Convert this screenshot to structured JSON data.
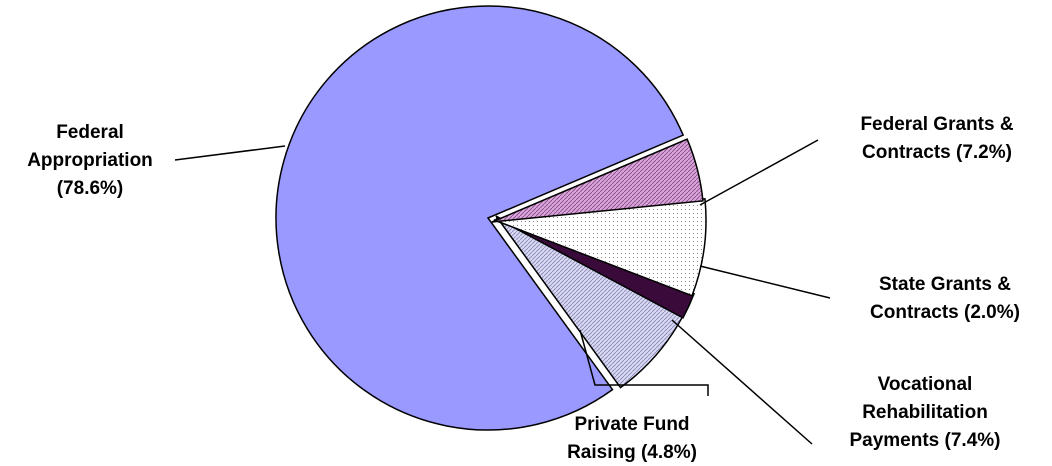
{
  "chart_data": {
    "type": "pie",
    "title": "",
    "slices": [
      {
        "label_lines": [
          "Federal",
          "Appropriation",
          "(78.6%)"
        ],
        "value": 78.6,
        "color": "#9999ff",
        "pattern": "solid"
      },
      {
        "label_lines": [
          "Federal Grants &",
          "Contracts (7.2%)"
        ],
        "value": 7.2,
        "color": "#ccccee",
        "pattern": "diagonal-hatch"
      },
      {
        "label_lines": [
          "State Grants &",
          "Contracts (2.0%)"
        ],
        "value": 2.0,
        "color": "#3a0a3a",
        "pattern": "solid"
      },
      {
        "label_lines": [
          "Vocational",
          "Rehabilitation",
          "Payments (7.4%)"
        ],
        "value": 7.4,
        "color": "#ffffff",
        "pattern": "dots"
      },
      {
        "label_lines": [
          "Private Fund",
          "Raising (4.8%)"
        ],
        "value": 4.8,
        "color": "#cc99cc",
        "pattern": "diagonal-hatch"
      }
    ]
  }
}
